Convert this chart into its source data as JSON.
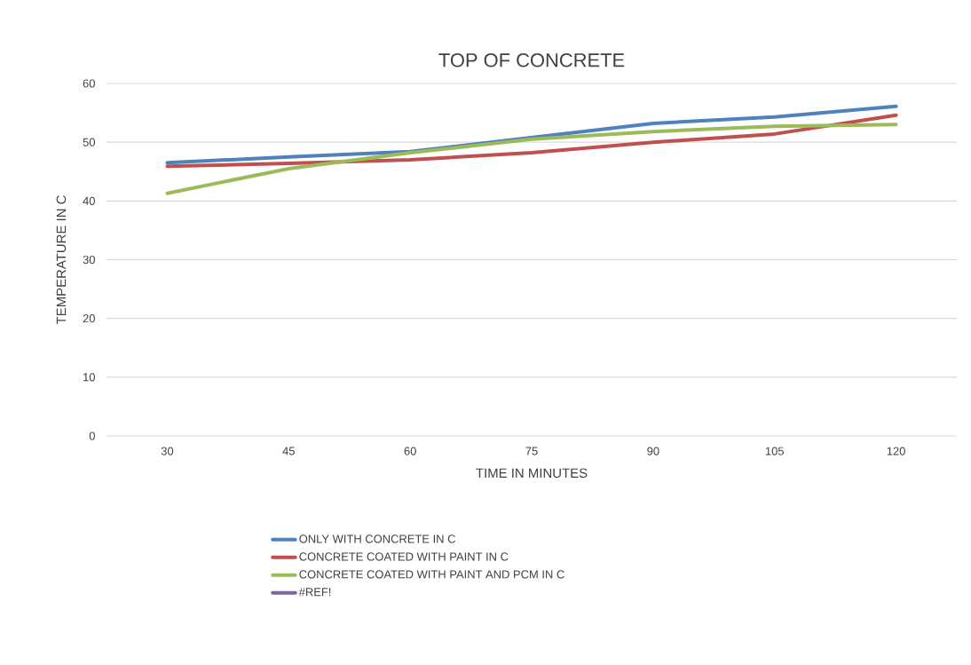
{
  "chart_data": {
    "type": "line",
    "title": "TOP OF CONCRETE",
    "xlabel": "TIME IN MINUTES",
    "ylabel": "TEMPERATURE IN C",
    "categories": [
      "30",
      "45",
      "60",
      "75",
      "90",
      "105",
      "120"
    ],
    "series": [
      {
        "name": "ONLY WITH CONCRETE IN C",
        "color": "#4f81bd",
        "values": [
          46.5,
          47.5,
          48.4,
          50.8,
          53.2,
          54.3,
          56.1
        ]
      },
      {
        "name": "CONCRETE COATED WITH PAINT IN C",
        "color": "#c0504d",
        "values": [
          45.9,
          46.4,
          47.0,
          48.2,
          50.0,
          51.4,
          54.6
        ]
      },
      {
        "name": "CONCRETE COATED WITH PAINT AND PCM  IN C",
        "color": "#9bbb59",
        "values": [
          41.3,
          45.5,
          48.2,
          50.5,
          51.8,
          52.7,
          53.0
        ]
      },
      {
        "name": "#REF!",
        "color": "#8064a2",
        "values": [
          null,
          null,
          null,
          null,
          null,
          null,
          null
        ]
      }
    ],
    "ylim": [
      0,
      60
    ],
    "yticks": [
      0,
      10,
      20,
      30,
      40,
      50,
      60
    ],
    "grid": "y",
    "legend": "bottom",
    "marker": "none",
    "line_style": "solid"
  }
}
